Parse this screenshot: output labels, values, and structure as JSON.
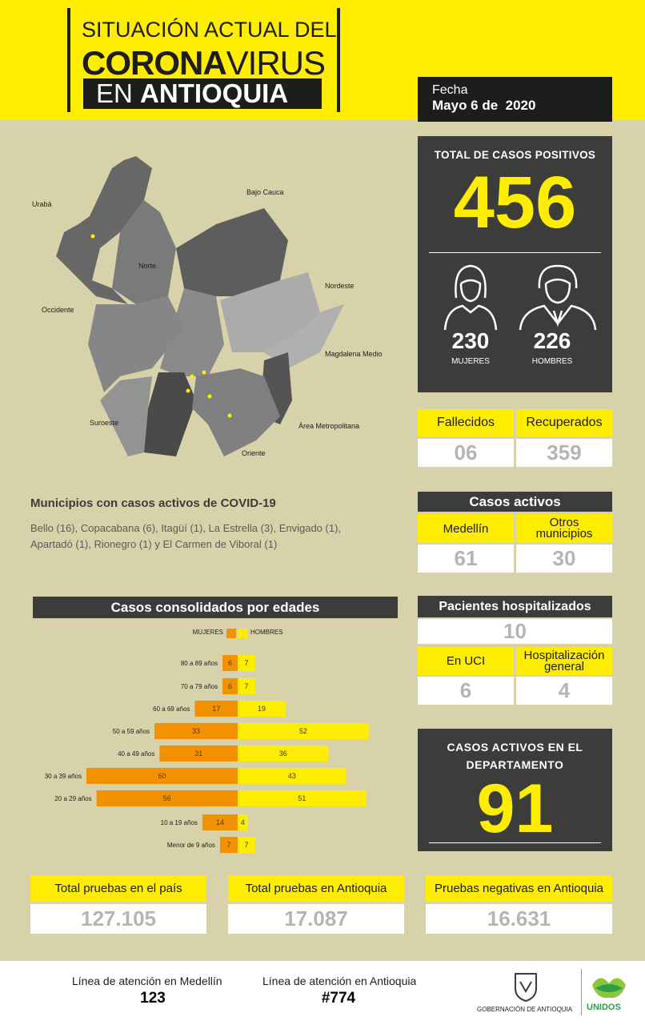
{
  "header": {
    "title_line1": "SITUACIÓN ACTUAL DEL",
    "title_bold": "CORONA",
    "title_light": "VIRUS",
    "title_line3_light": "EN",
    "title_line3_bold": "ANTIOQUIA",
    "date_label": "Fecha",
    "date": "Mayo 6 de  2020"
  },
  "map": {
    "regions": [
      "Urabá",
      "Bajo Cauca",
      "Norte",
      "Nordeste",
      "Occidente",
      "Magdalena Medio",
      "Suroeste",
      "Área Metropolitana",
      "Oriente"
    ]
  },
  "total": {
    "label": "TOTAL DE CASOS POSITIVOS",
    "value": 456,
    "women": 230,
    "women_label": "MUJERES",
    "men": 226,
    "men_label": "HOMBRES"
  },
  "outcomes": {
    "deaths_label": "Fallecidos",
    "deaths": "06",
    "recovered_label": "Recuperados",
    "recovered": 359
  },
  "municipalities": {
    "title": "Municipios con casos activos de COVID-19",
    "lines": [
      "Bello (16), Copacabana (6), Itagüí (1), La Estrella (3), Envigado (1),",
      "Apartadó (1), Rionegro (1) y El Carmen de Viboral (1)"
    ]
  },
  "active": {
    "title": "Casos activos",
    "medellin_label": "Medellín",
    "medellin": 61,
    "others_label": "Otros municipios",
    "others": 30
  },
  "hospital": {
    "title": "Pacientes hospitalizados",
    "total": 10,
    "icu_label": "En UCI",
    "icu": 6,
    "general_label": "Hospitalización general",
    "general": 4
  },
  "department": {
    "label": "CASOS ACTIVOS EN EL DEPARTAMENTO",
    "value": 91
  },
  "age_chart": {
    "type": "bar",
    "orientation": "pyramid",
    "title": "Casos consolidados por edades",
    "categories": [
      "80 a 89 años",
      "70 a 79 años",
      "60 a 69 años",
      "50 a 59 años",
      "40 a 49 años",
      "30 a 39 años",
      "20 a 29 años",
      "10 a 19 años",
      "Menor de 9 años"
    ],
    "series": [
      {
        "name": "MUJERES",
        "color": "#f39200",
        "values": [
          6,
          6,
          17,
          33,
          31,
          60,
          56,
          14,
          7
        ]
      },
      {
        "name": "HOMBRES",
        "color": "#ffed00",
        "values": [
          7,
          7,
          19,
          52,
          36,
          43,
          51,
          4,
          7
        ]
      }
    ]
  },
  "tests": [
    {
      "label": "Total pruebas en el país",
      "value": "127.105"
    },
    {
      "label": "Total pruebas en Antioquia",
      "value": "17.087"
    },
    {
      "label": "Pruebas negativas en Antioquia",
      "value": "16.631"
    }
  ],
  "footer": {
    "line1_label": "Línea de atención en Medellín",
    "line1": 123,
    "line2_label": "Línea de atención en Antioquia",
    "line2": "#774",
    "logo1": "GOBERNACIÓN DE ANTIOQUIA",
    "logo2": "UNIDOS"
  }
}
